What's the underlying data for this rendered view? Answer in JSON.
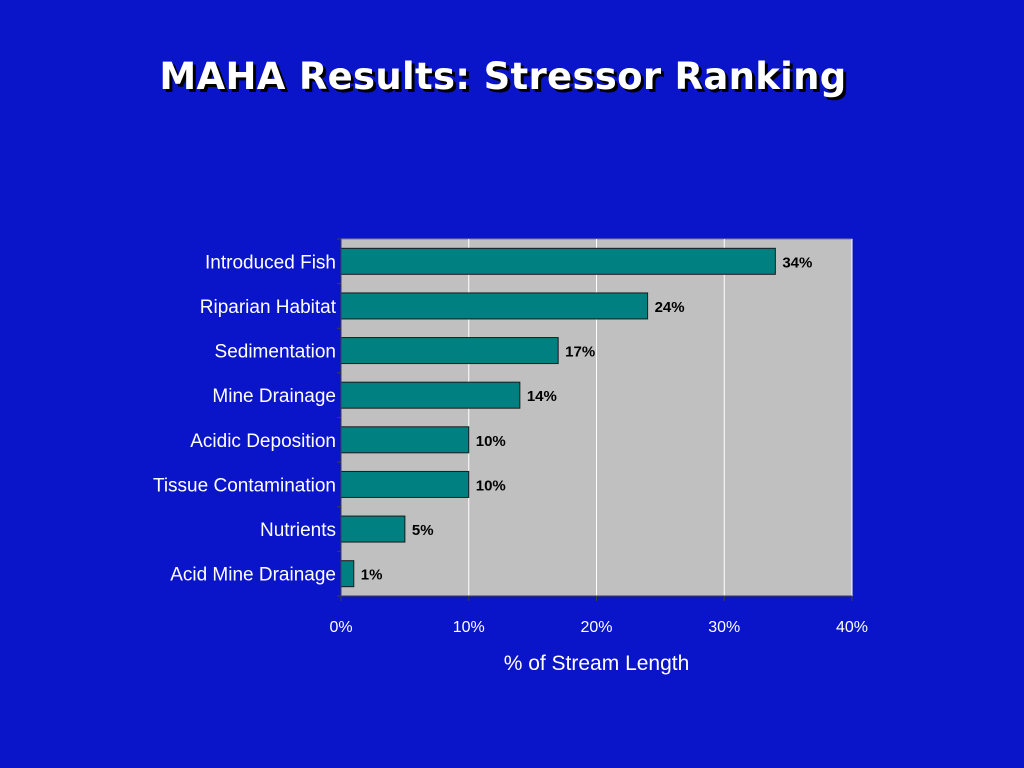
{
  "slide": {
    "title": "MAHA Results:  Stressor Ranking"
  },
  "chart_data": {
    "type": "bar",
    "orientation": "horizontal",
    "categories": [
      "Introduced Fish",
      "Riparian Habitat",
      "Sedimentation",
      "Mine Drainage",
      "Acidic Deposition",
      "Tissue Contamination",
      "Nutrients",
      "Acid Mine Drainage"
    ],
    "values": [
      34,
      24,
      17,
      14,
      10,
      10,
      5,
      1
    ],
    "data_labels": [
      "34%",
      "24%",
      "17%",
      "14%",
      "10%",
      "10%",
      "5%",
      "1%"
    ],
    "xlabel": "% of Stream Length",
    "ylabel": "",
    "xlim": [
      0,
      40
    ],
    "x_ticks": [
      0,
      10,
      20,
      30,
      40
    ],
    "x_tick_labels": [
      "0%",
      "10%",
      "20%",
      "30%",
      "40%"
    ],
    "grid": true,
    "legend": "none",
    "colors": {
      "background": "#0a14c8",
      "plot_area": "#c0c0c0",
      "bar_fill": "#008080",
      "bar_stroke": "#1a1a1a",
      "gridline": "#ffffff",
      "label_text": "#ffffff",
      "data_label_text": "#000000"
    }
  }
}
